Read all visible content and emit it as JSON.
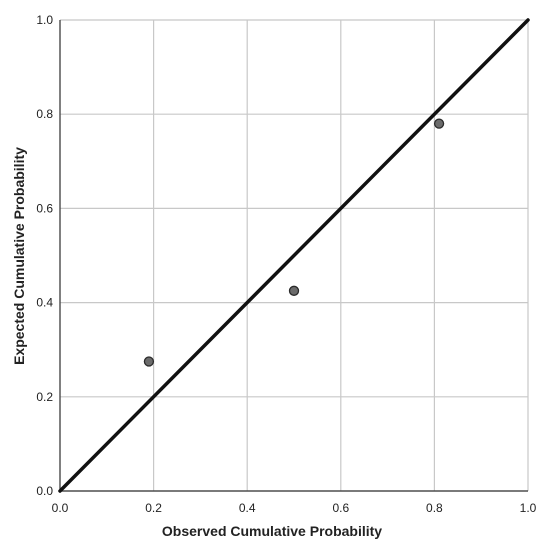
{
  "chart_data": {
    "type": "scatter",
    "title": "",
    "xlabel": "Observed Cumulative Probability",
    "ylabel": "Expected Cumulative Probability",
    "xlim": [
      0.0,
      1.0
    ],
    "ylim": [
      0.0,
      1.0
    ],
    "x_ticks": [
      0.0,
      0.2,
      0.4,
      0.6,
      0.8,
      1.0
    ],
    "y_ticks": [
      0.0,
      0.2,
      0.4,
      0.6,
      0.8,
      1.0
    ],
    "x_tick_labels": [
      "0.0",
      "0.2",
      "0.4",
      "0.6",
      "0.8",
      "1.0"
    ],
    "y_tick_labels": [
      "0.0",
      "0.2",
      "0.4",
      "0.6",
      "0.8",
      "1.0"
    ],
    "grid": true,
    "legend": "none",
    "points": [
      {
        "x": 0.19,
        "y": 0.275
      },
      {
        "x": 0.5,
        "y": 0.425
      },
      {
        "x": 0.81,
        "y": 0.78
      }
    ],
    "reference_line": {
      "x": [
        0.0,
        1.0
      ],
      "y": [
        0.0,
        1.0
      ]
    },
    "colors": {
      "point_fill": "#6b6b6b",
      "point_stroke": "#2a2a2a",
      "reference_line": "#111111",
      "grid": "#c8c8c8",
      "axis": "#333333"
    }
  }
}
